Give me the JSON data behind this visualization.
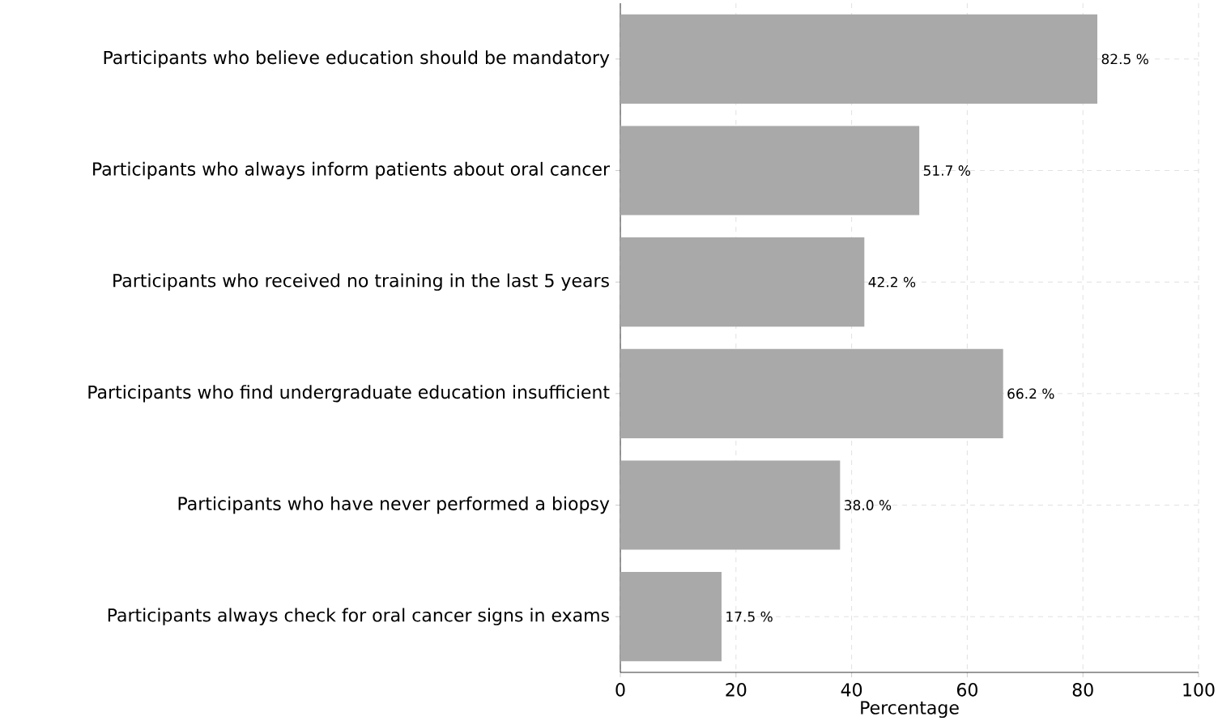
{
  "chart_data": {
    "type": "bar",
    "orientation": "horizontal",
    "xlabel": "Percentage",
    "categories": [
      "Participants who believe education should be mandatory",
      "Participants who always inform patients about oral cancer",
      "Participants who received no training in the last 5 years",
      "Participants who find undergraduate education insufficient",
      "Participants who have never performed a biopsy",
      "Participants always check for oral cancer signs in exams"
    ],
    "values": [
      82.5,
      51.7,
      42.2,
      66.2,
      38.0,
      17.5
    ],
    "value_labels": [
      "82.5 %",
      "51.7 %",
      "42.2 %",
      "66.2 %",
      "38.0 %",
      "17.5 %"
    ],
    "color": "#a9a9a9",
    "xlim": [
      0,
      100
    ],
    "xticks": [
      0,
      20,
      40,
      60,
      80,
      100
    ],
    "grid": true
  }
}
